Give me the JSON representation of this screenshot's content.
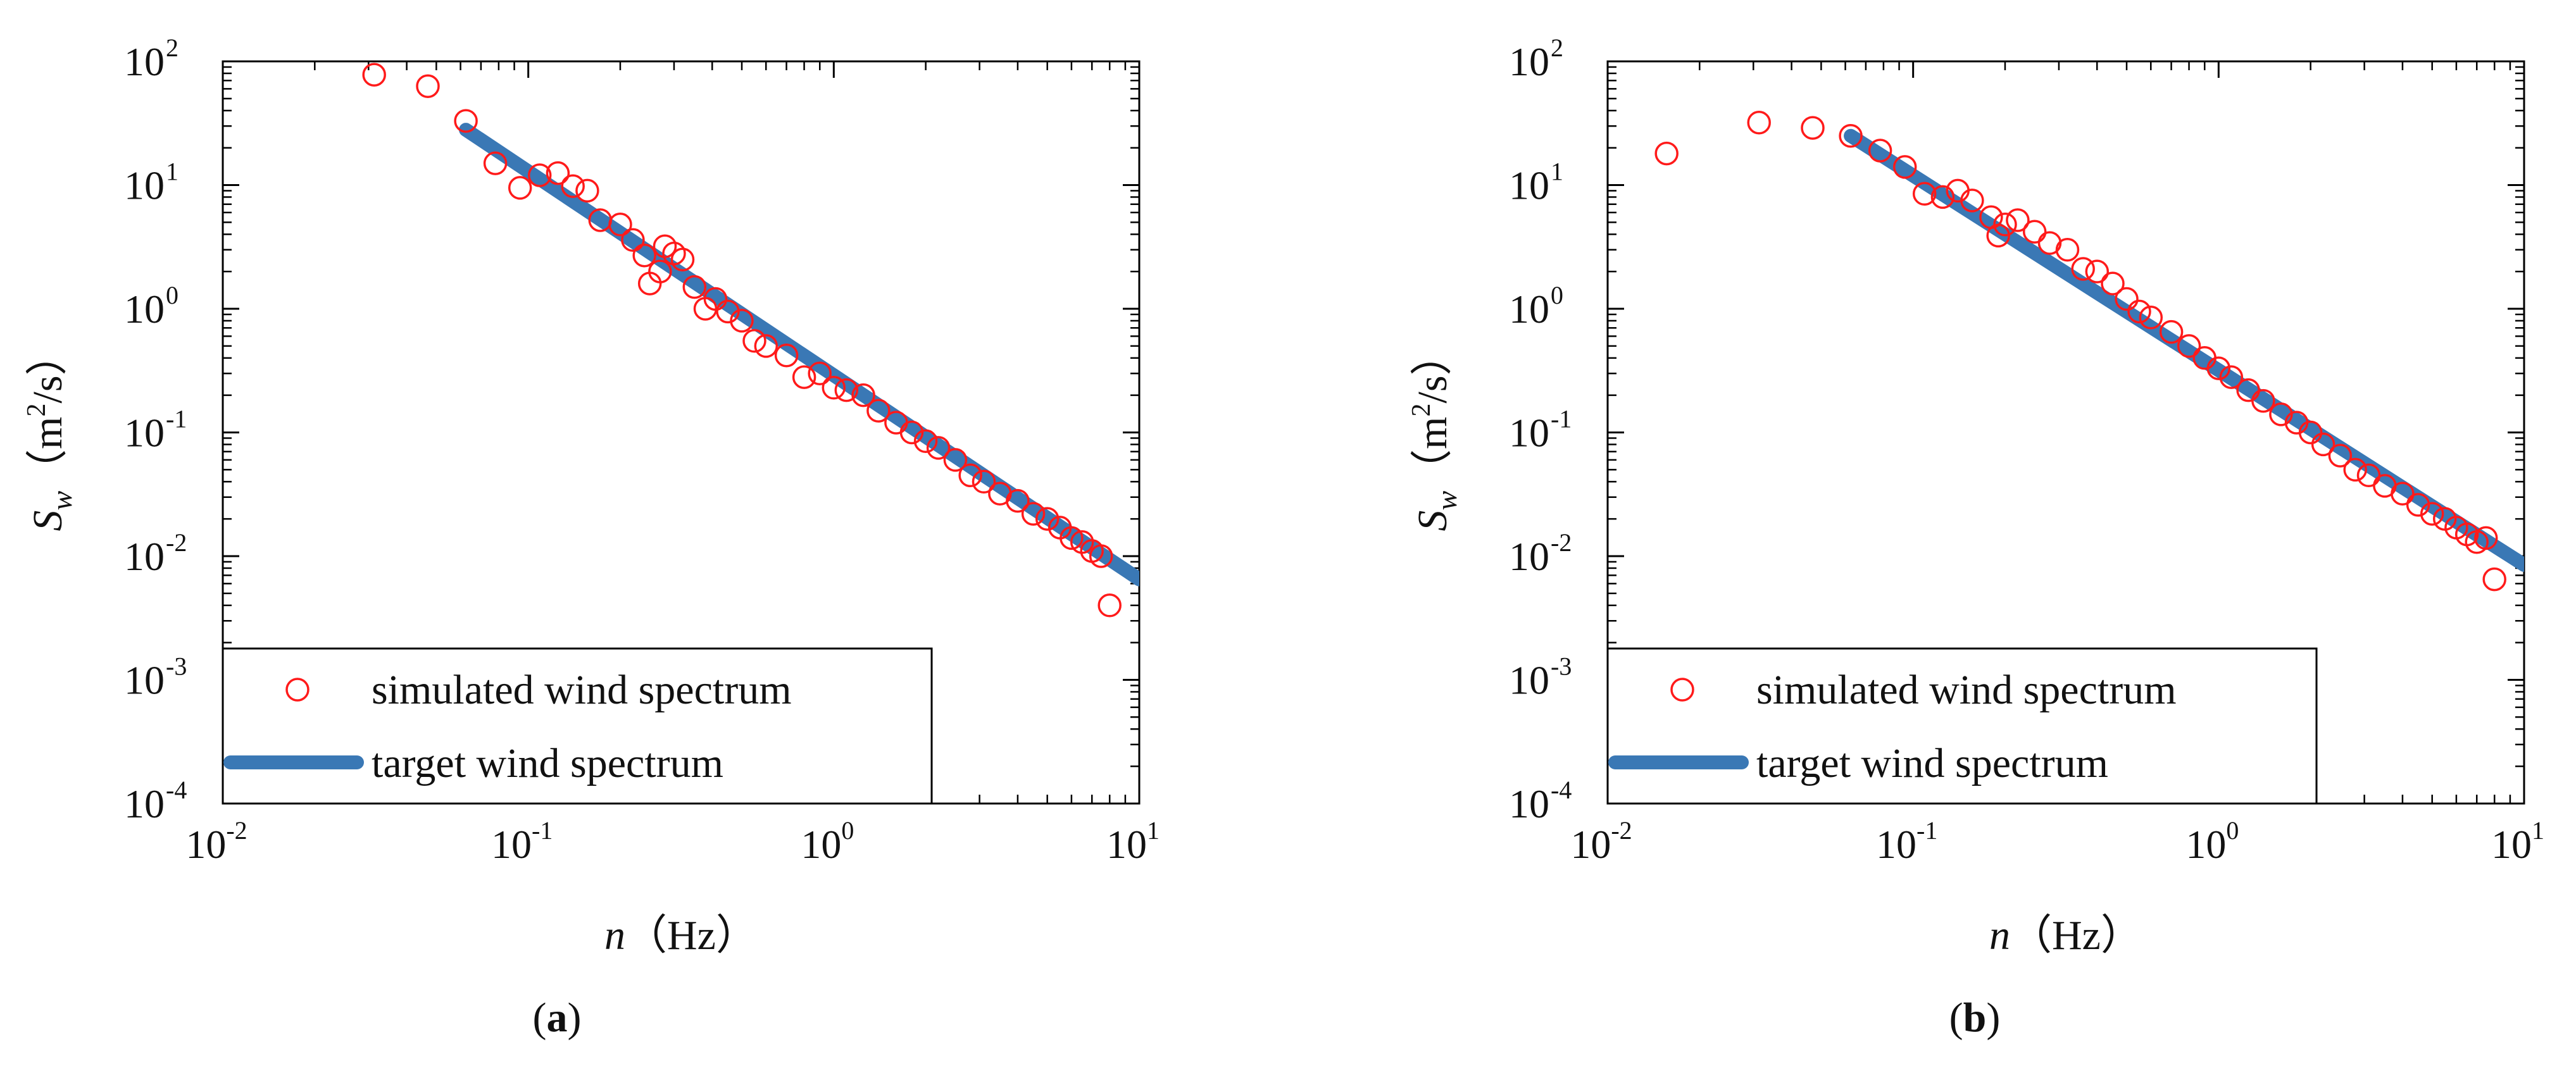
{
  "figure": {
    "panels": [
      "a",
      "b"
    ]
  },
  "colors": {
    "simulated": "#ff1a1a",
    "target": "#3a78b5",
    "axis": "#000000"
  },
  "chart_data": [
    {
      "type": "scatter",
      "panel_label": "a",
      "xscale": "log",
      "yscale": "log",
      "xlim": [
        0.01,
        10
      ],
      "ylim": [
        0.0001,
        100
      ],
      "x_ticks": [
        {
          "base": "10",
          "exp": "-2"
        },
        {
          "base": "10",
          "exp": "-1"
        },
        {
          "base": "10",
          "exp": "0"
        },
        {
          "base": "10",
          "exp": "1"
        }
      ],
      "y_ticks": [
        {
          "base": "10",
          "exp": "-4"
        },
        {
          "base": "10",
          "exp": "-3"
        },
        {
          "base": "10",
          "exp": "-2"
        },
        {
          "base": "10",
          "exp": "-1"
        },
        {
          "base": "10",
          "exp": "0"
        },
        {
          "base": "10",
          "exp": "1"
        },
        {
          "base": "10",
          "exp": "2"
        }
      ],
      "xlabel": {
        "var": "n",
        "unit": "（Hz）"
      },
      "ylabel": {
        "var": "S",
        "sub": "w",
        "unit_pre": "（m",
        "unit_exp": "2",
        "unit_post": "/s）"
      },
      "legend": {
        "position": "lower-left",
        "entries": [
          "simulated wind spectrum",
          "target wind spectrum"
        ]
      },
      "series": [
        {
          "name": "simulated wind spectrum",
          "kind": "markers",
          "points": [
            [
              0.0313,
              78
            ],
            [
              0.0469,
              63
            ],
            [
              0.0625,
              33
            ],
            [
              0.078,
              15
            ],
            [
              0.094,
              9.5
            ],
            [
              0.109,
              12
            ],
            [
              0.125,
              12.5
            ],
            [
              0.14,
              9.8
            ],
            [
              0.156,
              9
            ],
            [
              0.172,
              5.2
            ],
            [
              0.2,
              4.8
            ],
            [
              0.22,
              3.6
            ],
            [
              0.24,
              2.7
            ],
            [
              0.25,
              1.6
            ],
            [
              0.27,
              2.0
            ],
            [
              0.28,
              3.2
            ],
            [
              0.3,
              2.8
            ],
            [
              0.32,
              2.5
            ],
            [
              0.35,
              1.5
            ],
            [
              0.38,
              1.0
            ],
            [
              0.41,
              1.2
            ],
            [
              0.45,
              0.95
            ],
            [
              0.5,
              0.8
            ],
            [
              0.55,
              0.55
            ],
            [
              0.6,
              0.5
            ],
            [
              0.7,
              0.42
            ],
            [
              0.8,
              0.28
            ],
            [
              0.9,
              0.3
            ],
            [
              1.0,
              0.23
            ],
            [
              1.1,
              0.22
            ],
            [
              1.25,
              0.2
            ],
            [
              1.4,
              0.15
            ],
            [
              1.6,
              0.12
            ],
            [
              1.8,
              0.1
            ],
            [
              2.0,
              0.085
            ],
            [
              2.2,
              0.075
            ],
            [
              2.5,
              0.06
            ],
            [
              2.8,
              0.045
            ],
            [
              3.1,
              0.04
            ],
            [
              3.5,
              0.032
            ],
            [
              4.0,
              0.028
            ],
            [
              4.5,
              0.022
            ],
            [
              5.0,
              0.02
            ],
            [
              5.5,
              0.017
            ],
            [
              6.0,
              0.014
            ],
            [
              6.5,
              0.013
            ],
            [
              7.0,
              0.011
            ],
            [
              7.5,
              0.01
            ],
            [
              8.0,
              0.004
            ]
          ]
        },
        {
          "name": "target wind spectrum",
          "kind": "line",
          "points": [
            [
              0.0625,
              28
            ],
            [
              10,
              0.0065
            ]
          ]
        }
      ]
    },
    {
      "type": "scatter",
      "panel_label": "b",
      "xscale": "log",
      "yscale": "log",
      "xlim": [
        0.01,
        10
      ],
      "ylim": [
        0.0001,
        100
      ],
      "x_ticks": [
        {
          "base": "10",
          "exp": "-2"
        },
        {
          "base": "10",
          "exp": "-1"
        },
        {
          "base": "10",
          "exp": "0"
        },
        {
          "base": "10",
          "exp": "1"
        }
      ],
      "y_ticks": [
        {
          "base": "10",
          "exp": "-4"
        },
        {
          "base": "10",
          "exp": "-3"
        },
        {
          "base": "10",
          "exp": "-2"
        },
        {
          "base": "10",
          "exp": "-1"
        },
        {
          "base": "10",
          "exp": "0"
        },
        {
          "base": "10",
          "exp": "1"
        },
        {
          "base": "10",
          "exp": "2"
        }
      ],
      "xlabel": {
        "var": "n",
        "unit": "（Hz）"
      },
      "ylabel": {
        "var": "S",
        "sub": "w",
        "unit_pre": "（m",
        "unit_exp": "2",
        "unit_post": "/s）"
      },
      "legend": {
        "position": "lower-left",
        "entries": [
          "simulated wind spectrum",
          "target wind spectrum"
        ]
      },
      "series": [
        {
          "name": "simulated wind spectrum",
          "kind": "markers",
          "points": [
            [
              0.0156,
              18
            ],
            [
              0.0313,
              32
            ],
            [
              0.0469,
              29
            ],
            [
              0.0625,
              25
            ],
            [
              0.078,
              19
            ],
            [
              0.094,
              14
            ],
            [
              0.109,
              8.5
            ],
            [
              0.125,
              8
            ],
            [
              0.14,
              9
            ],
            [
              0.156,
              7.5
            ],
            [
              0.18,
              5.5
            ],
            [
              0.19,
              3.9
            ],
            [
              0.2,
              4.8
            ],
            [
              0.22,
              5.2
            ],
            [
              0.25,
              4.2
            ],
            [
              0.28,
              3.4
            ],
            [
              0.32,
              3.0
            ],
            [
              0.36,
              2.1
            ],
            [
              0.4,
              2.0
            ],
            [
              0.45,
              1.6
            ],
            [
              0.5,
              1.2
            ],
            [
              0.55,
              0.95
            ],
            [
              0.6,
              0.85
            ],
            [
              0.7,
              0.65
            ],
            [
              0.8,
              0.5
            ],
            [
              0.9,
              0.4
            ],
            [
              1.0,
              0.33
            ],
            [
              1.1,
              0.28
            ],
            [
              1.25,
              0.22
            ],
            [
              1.4,
              0.18
            ],
            [
              1.6,
              0.14
            ],
            [
              1.8,
              0.12
            ],
            [
              2.0,
              0.1
            ],
            [
              2.2,
              0.08
            ],
            [
              2.5,
              0.065
            ],
            [
              2.8,
              0.05
            ],
            [
              3.1,
              0.045
            ],
            [
              3.5,
              0.037
            ],
            [
              4.0,
              0.032
            ],
            [
              4.5,
              0.026
            ],
            [
              5.0,
              0.022
            ],
            [
              5.5,
              0.02
            ],
            [
              6.0,
              0.017
            ],
            [
              6.5,
              0.015
            ],
            [
              7.0,
              0.013
            ],
            [
              7.5,
              0.014
            ],
            [
              8.0,
              0.0065
            ]
          ]
        },
        {
          "name": "target wind spectrum",
          "kind": "line",
          "points": [
            [
              0.0625,
              25
            ],
            [
              10,
              0.0085
            ]
          ]
        }
      ]
    }
  ]
}
